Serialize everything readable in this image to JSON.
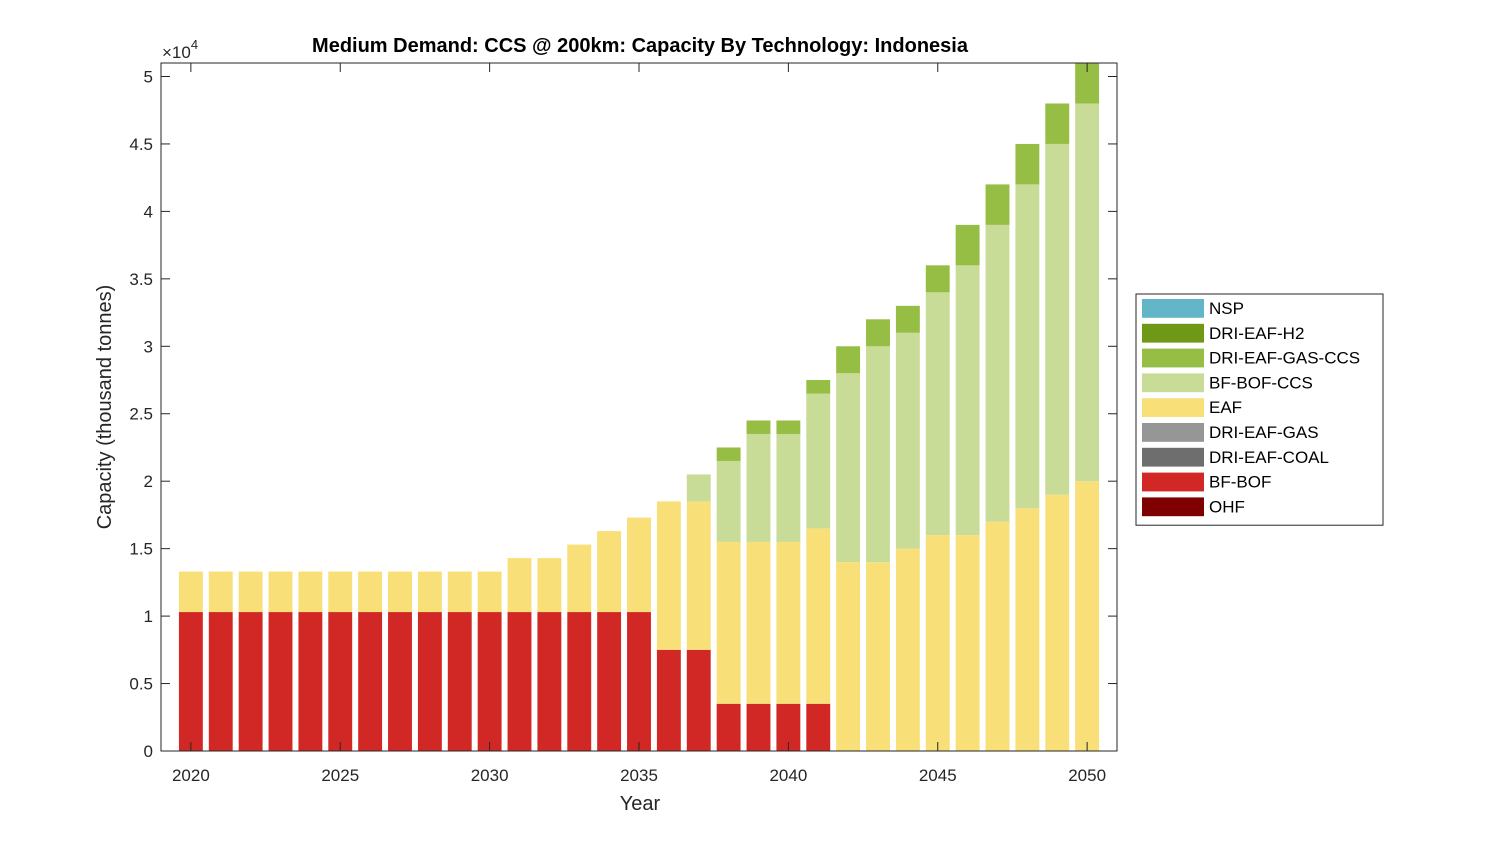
{
  "chart_data": {
    "type": "bar",
    "stacked": true,
    "title": "Medium Demand: CCS @ 200km: Capacity By Technology: Indonesia",
    "xlabel": "Year",
    "ylabel": "Capacity (thousand tonnes)",
    "y_multiplier_label": "×10",
    "y_multiplier_exponent": "4",
    "xlim": [
      2019,
      2051
    ],
    "ylim": [
      0,
      51000
    ],
    "x_ticks": [
      2020,
      2025,
      2030,
      2035,
      2040,
      2045,
      2050
    ],
    "x_tick_labels": [
      "2020",
      "2025",
      "2030",
      "2035",
      "2040",
      "2045",
      "2050"
    ],
    "y_ticks": [
      0,
      5000,
      10000,
      15000,
      20000,
      25000,
      30000,
      35000,
      40000,
      45000,
      50000
    ],
    "y_tick_labels": [
      "0",
      "0.5",
      "1",
      "1.5",
      "2",
      "2.5",
      "3",
      "3.5",
      "4",
      "4.5",
      "5"
    ],
    "grid": false,
    "legend_position": "right",
    "categories": [
      2020,
      2021,
      2022,
      2023,
      2024,
      2025,
      2026,
      2027,
      2028,
      2029,
      2030,
      2031,
      2032,
      2033,
      2034,
      2035,
      2036,
      2037,
      2038,
      2039,
      2040,
      2041,
      2042,
      2043,
      2044,
      2045,
      2046,
      2047,
      2048,
      2049,
      2050
    ],
    "series": [
      {
        "name": "OHF",
        "color": "#7f0000",
        "values": [
          0,
          0,
          0,
          0,
          0,
          0,
          0,
          0,
          0,
          0,
          0,
          0,
          0,
          0,
          0,
          0,
          0,
          0,
          0,
          0,
          0,
          0,
          0,
          0,
          0,
          0,
          0,
          0,
          0,
          0,
          0
        ]
      },
      {
        "name": "BF-BOF",
        "color": "#d22825",
        "values": [
          10300,
          10300,
          10300,
          10300,
          10300,
          10300,
          10300,
          10300,
          10300,
          10300,
          10300,
          10300,
          10300,
          10300,
          10300,
          10300,
          7500,
          7500,
          3500,
          3500,
          3500,
          3500,
          0,
          0,
          0,
          0,
          0,
          0,
          0,
          0,
          0
        ]
      },
      {
        "name": "DRI-EAF-COAL",
        "color": "#6e6e6e",
        "values": [
          0,
          0,
          0,
          0,
          0,
          0,
          0,
          0,
          0,
          0,
          0,
          0,
          0,
          0,
          0,
          0,
          0,
          0,
          0,
          0,
          0,
          0,
          0,
          0,
          0,
          0,
          0,
          0,
          0,
          0,
          0
        ]
      },
      {
        "name": "DRI-EAF-GAS",
        "color": "#969696",
        "values": [
          0,
          0,
          0,
          0,
          0,
          0,
          0,
          0,
          0,
          0,
          0,
          0,
          0,
          0,
          0,
          0,
          0,
          0,
          0,
          0,
          0,
          0,
          0,
          0,
          0,
          0,
          0,
          0,
          0,
          0,
          0
        ]
      },
      {
        "name": "EAF",
        "color": "#f8df78",
        "values": [
          3000,
          3000,
          3000,
          3000,
          3000,
          3000,
          3000,
          3000,
          3000,
          3000,
          3000,
          4000,
          4000,
          5000,
          6000,
          7000,
          11000,
          11000,
          12000,
          12000,
          12000,
          13000,
          14000,
          14000,
          15000,
          16000,
          16000,
          17000,
          18000,
          19000,
          20000
        ]
      },
      {
        "name": "BF-BOF-CCS",
        "color": "#c8dc98",
        "values": [
          0,
          0,
          0,
          0,
          0,
          0,
          0,
          0,
          0,
          0,
          0,
          0,
          0,
          0,
          0,
          0,
          0,
          2000,
          6000,
          8000,
          8000,
          10000,
          14000,
          16000,
          16000,
          18000,
          20000,
          22000,
          24000,
          26000,
          28000
        ]
      },
      {
        "name": "DRI-EAF-GAS-CCS",
        "color": "#96be44",
        "values": [
          0,
          0,
          0,
          0,
          0,
          0,
          0,
          0,
          0,
          0,
          0,
          0,
          0,
          0,
          0,
          0,
          0,
          0,
          1000,
          1000,
          1000,
          1000,
          2000,
          2000,
          2000,
          2000,
          3000,
          3000,
          3000,
          3000,
          3000
        ]
      },
      {
        "name": "DRI-EAF-H2",
        "color": "#6e9816",
        "values": [
          0,
          0,
          0,
          0,
          0,
          0,
          0,
          0,
          0,
          0,
          0,
          0,
          0,
          0,
          0,
          0,
          0,
          0,
          0,
          0,
          0,
          0,
          0,
          0,
          0,
          0,
          0,
          0,
          0,
          0,
          0
        ]
      },
      {
        "name": "NSP",
        "color": "#62b6c8",
        "values": [
          0,
          0,
          0,
          0,
          0,
          0,
          0,
          0,
          0,
          0,
          0,
          0,
          0,
          0,
          0,
          0,
          0,
          0,
          0,
          0,
          0,
          0,
          0,
          0,
          0,
          0,
          0,
          0,
          0,
          0,
          0
        ]
      }
    ],
    "legend_order": [
      "NSP",
      "DRI-EAF-H2",
      "DRI-EAF-GAS-CCS",
      "BF-BOF-CCS",
      "EAF",
      "DRI-EAF-GAS",
      "DRI-EAF-COAL",
      "BF-BOF",
      "OHF"
    ]
  }
}
